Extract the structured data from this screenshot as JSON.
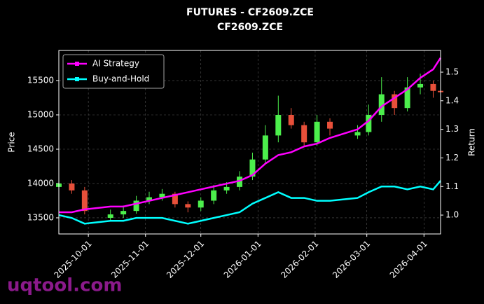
{
  "chart_data": {
    "type": "candlestick",
    "title": "FUTURES - CF2609.ZCE",
    "subtitle": "CF2609.ZCE",
    "y_label": "Price",
    "y2_label": "Return",
    "watermark": "uqtool.com",
    "x": [
      "2025-09-15",
      "2025-09-22",
      "2025-09-29",
      "2025-10-13",
      "2025-10-20",
      "2025-10-27",
      "2025-11-03",
      "2025-11-10",
      "2025-11-17",
      "2025-11-24",
      "2025-12-01",
      "2025-12-08",
      "2025-12-15",
      "2025-12-22",
      "2025-12-29",
      "2026-01-05",
      "2026-01-12",
      "2026-01-19",
      "2026-01-26",
      "2026-02-02",
      "2026-02-09",
      "2026-02-24",
      "2026-03-02",
      "2026-03-09",
      "2026-03-16",
      "2026-03-23",
      "2026-03-30",
      "2026-04-06",
      "2026-04-10"
    ],
    "open": [
      13950,
      14000,
      13900,
      13500,
      13550,
      13600,
      13750,
      13800,
      13850,
      13700,
      13650,
      13750,
      13900,
      13950,
      14100,
      14350,
      14700,
      15000,
      14850,
      14600,
      14900,
      14700,
      14750,
      15000,
      15300,
      15100,
      15400,
      15450,
      15350
    ],
    "high": [
      14060,
      14050,
      13950,
      13620,
      13680,
      13820,
      13880,
      13920,
      13880,
      13740,
      13800,
      13980,
      14020,
      14180,
      14450,
      14850,
      15280,
      15100,
      14900,
      15000,
      14950,
      14850,
      15150,
      15550,
      15350,
      15550,
      15600,
      15500,
      15400
    ],
    "low": [
      13900,
      13850,
      13550,
      13450,
      13500,
      13560,
      13700,
      13750,
      13650,
      13580,
      13600,
      13700,
      13850,
      13900,
      14050,
      14300,
      14600,
      14800,
      14550,
      14550,
      14700,
      14650,
      14700,
      14900,
      15000,
      15050,
      15300,
      15250,
      15200
    ],
    "close": [
      14000,
      13900,
      13600,
      13550,
      13600,
      13750,
      13800,
      13850,
      13700,
      13650,
      13750,
      13900,
      13950,
      14100,
      14350,
      14700,
      15000,
      14850,
      14600,
      14900,
      14800,
      14750,
      15000,
      15300,
      15100,
      15400,
      15450,
      15350,
      15330
    ],
    "up_color": "#4cef4c",
    "down_color": "#e8503a",
    "series": [
      {
        "name": "AI Strategy",
        "color": "#ff00ff",
        "axis": "y2",
        "values": [
          1.01,
          1.01,
          1.02,
          1.03,
          1.03,
          1.04,
          1.05,
          1.06,
          1.07,
          1.08,
          1.09,
          1.1,
          1.11,
          1.12,
          1.14,
          1.18,
          1.21,
          1.22,
          1.24,
          1.25,
          1.27,
          1.3,
          1.33,
          1.38,
          1.41,
          1.44,
          1.48,
          1.51,
          1.55
        ]
      },
      {
        "name": "Buy-and-Hold",
        "color": "#00ffff",
        "axis": "y2",
        "values": [
          1.0,
          0.99,
          0.97,
          0.98,
          0.98,
          0.99,
          0.99,
          0.99,
          0.98,
          0.97,
          0.98,
          0.99,
          1.0,
          1.01,
          1.04,
          1.06,
          1.08,
          1.06,
          1.06,
          1.05,
          1.05,
          1.06,
          1.08,
          1.1,
          1.1,
          1.09,
          1.1,
          1.09,
          1.12
        ]
      }
    ],
    "xlim": [
      "2025-09-15",
      "2026-04-10"
    ],
    "xticks": [
      "2025-10-01",
      "2025-11-01",
      "2025-12-01",
      "2026-01-01",
      "2026-02-01",
      "2026-03-01",
      "2026-04-01"
    ],
    "ylim": [
      13265,
      15939
    ],
    "yticks": [
      13500,
      14000,
      14500,
      15000,
      15500
    ],
    "y2lim": [
      0.934,
      1.576
    ],
    "y2ticks": [
      {
        "value": 1,
        "label": "1.0"
      },
      1.1,
      1.2,
      1.3,
      1.4,
      1.5
    ],
    "grid": true,
    "legend": "upper left"
  }
}
